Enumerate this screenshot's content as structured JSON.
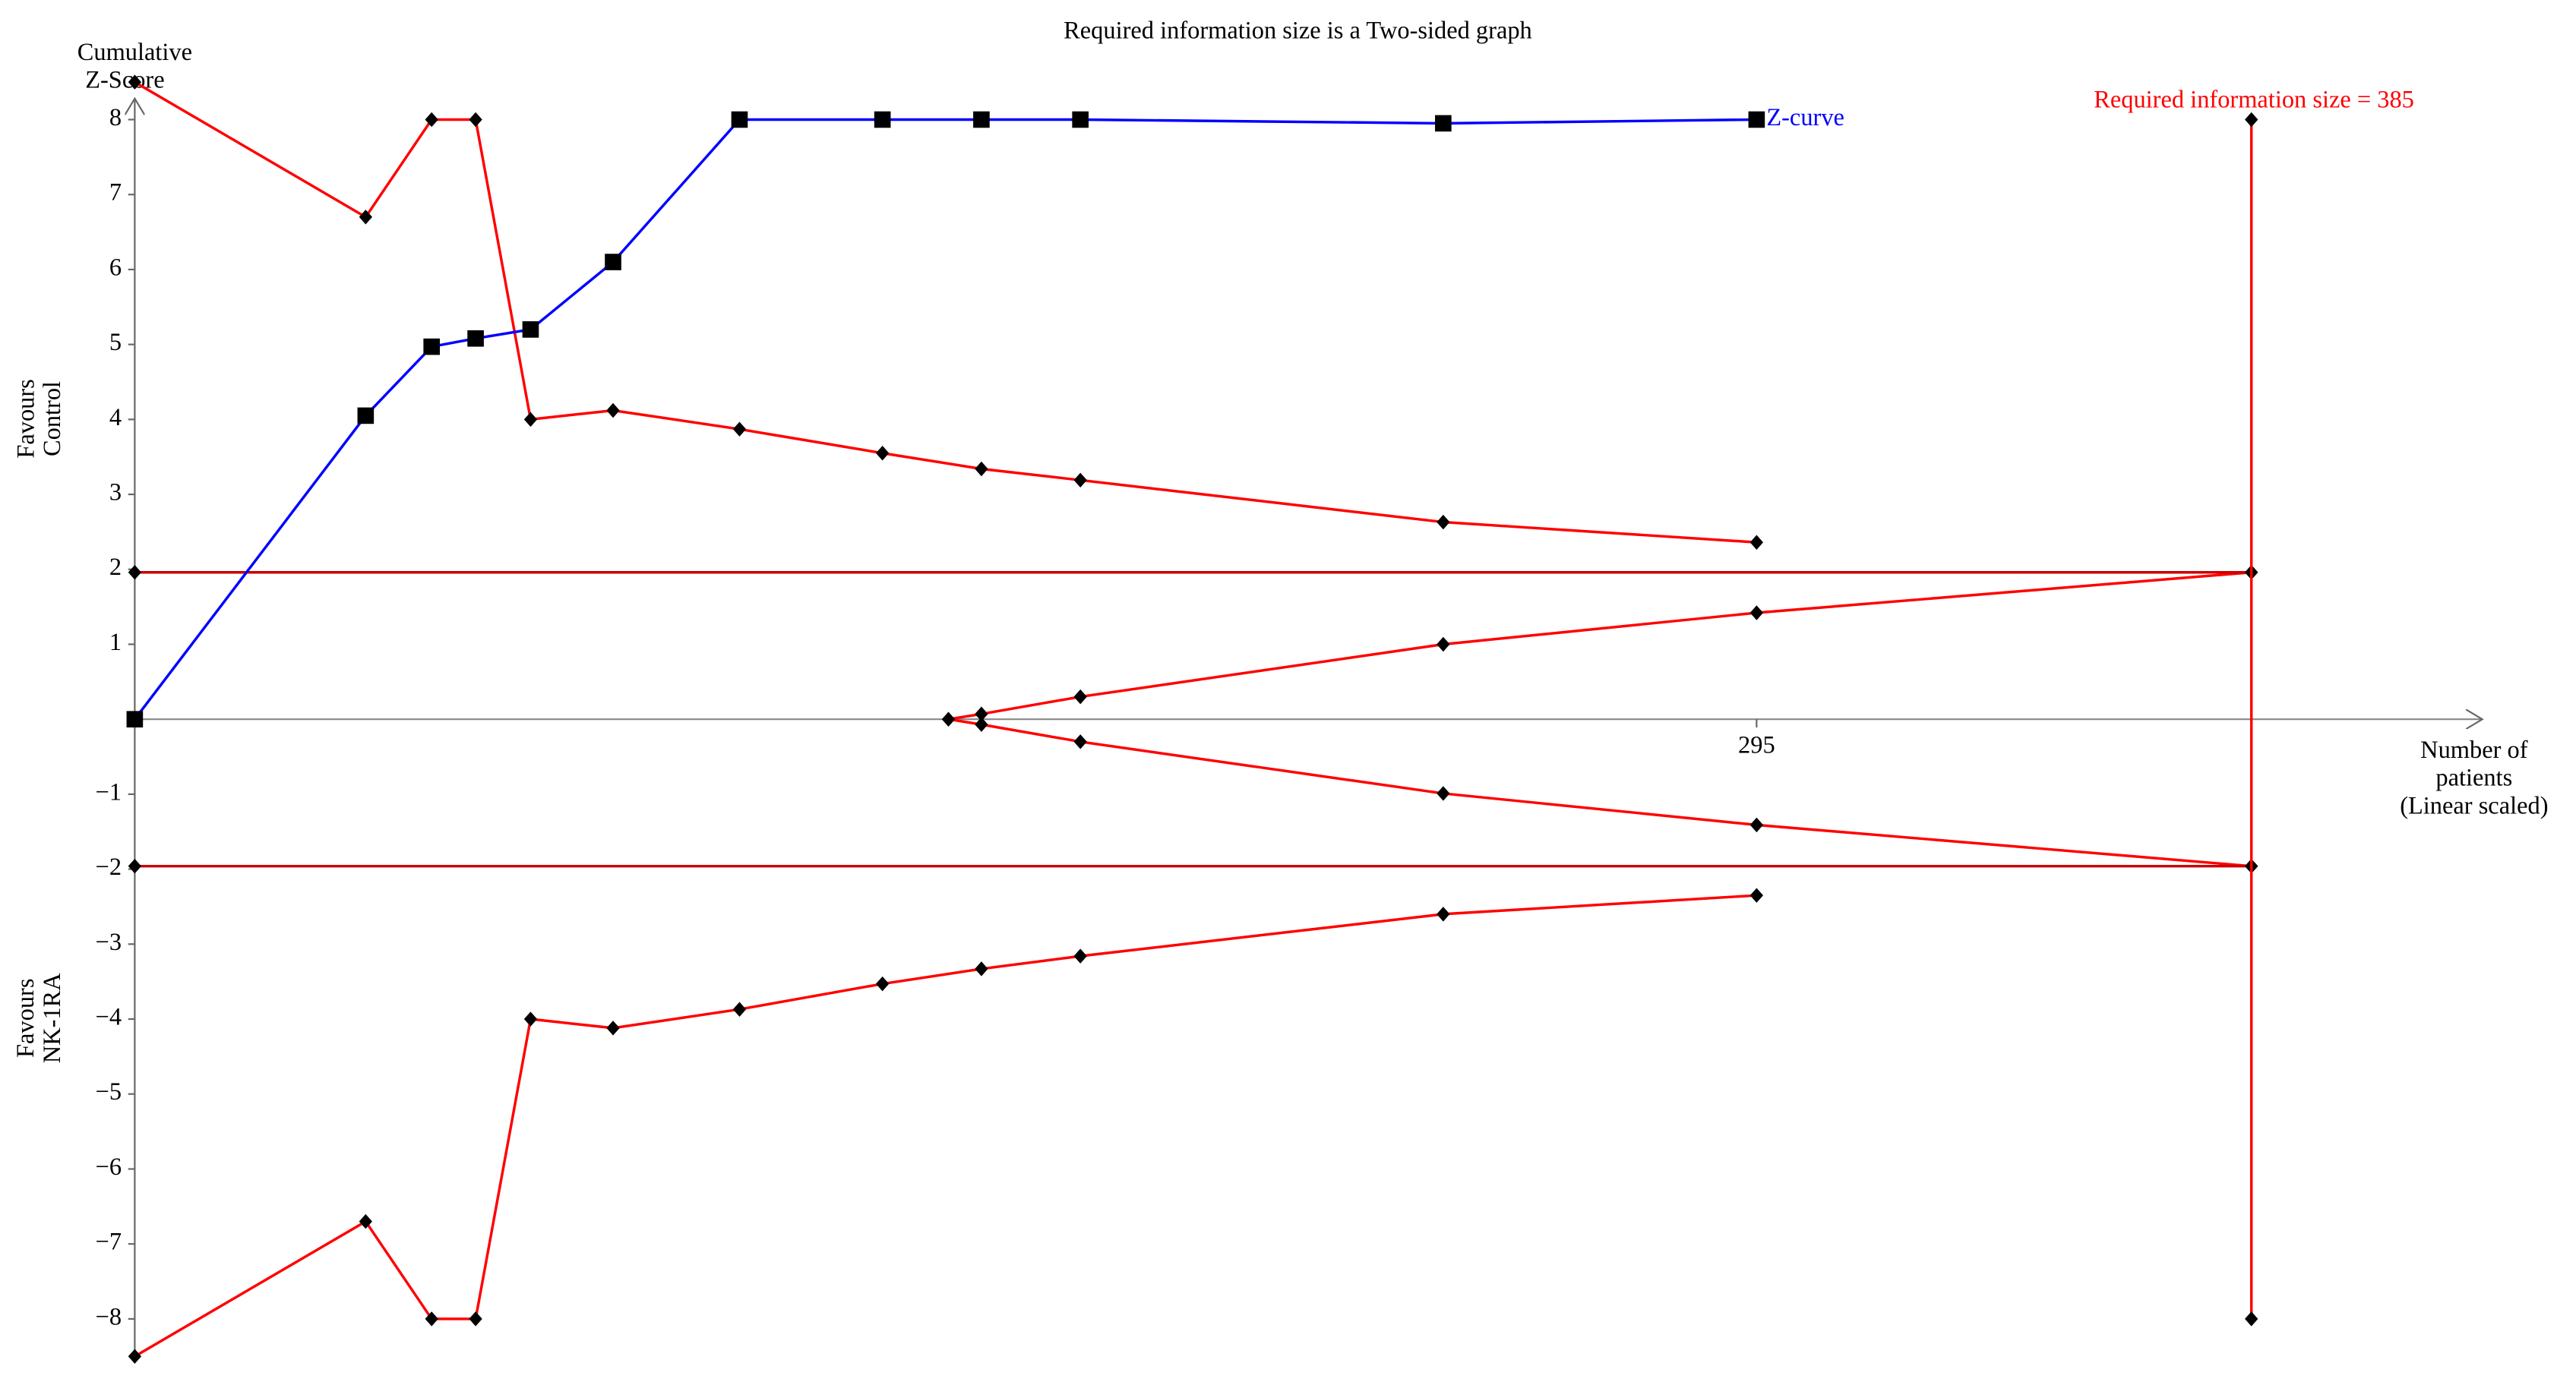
{
  "chart_data": {
    "type": "line",
    "title": "Required information size is a Two-sided graph",
    "y_label": [
      "Cumulative",
      "Z-Score"
    ],
    "favours_upper": [
      "Favours",
      "Control"
    ],
    "favours_lower": [
      "Favours",
      "NK-1RA"
    ],
    "x_label": [
      "Number of",
      "patients",
      "(Linear scaled)"
    ],
    "ris_annotation": "Required information size = 385",
    "xlim": [
      0,
      427
    ],
    "xticks": [
      295
    ],
    "ylim": [
      -8.5,
      8.5
    ],
    "yticks": [
      8,
      7,
      6,
      5,
      4,
      3,
      2,
      1,
      {
        "value": -1,
        "label": "−1"
      },
      {
        "value": -2,
        "label": "−2"
      },
      {
        "value": -3,
        "label": "−3"
      },
      {
        "value": -4,
        "label": "−4"
      },
      {
        "value": -5,
        "label": "−5"
      },
      {
        "value": -6,
        "label": "−6"
      },
      {
        "value": -7,
        "label": "−7"
      },
      {
        "value": -8,
        "label": "−8"
      }
    ],
    "series": [
      {
        "name": "Z-curve",
        "color": "#0000ff",
        "marker": "square",
        "x": [
          0,
          42,
          54,
          62,
          72,
          87,
          110,
          136,
          154,
          172,
          238,
          295
        ],
        "values": [
          0,
          4.05,
          4.97,
          5.08,
          5.2,
          6.1,
          8,
          8,
          8,
          8,
          7.95,
          8
        ]
      }
    ],
    "boundaries": [
      {
        "color": "#ff0000",
        "x": [
          0,
          42,
          54,
          62,
          72,
          87,
          110,
          136,
          154,
          172,
          238,
          295
        ],
        "values": [
          8.5,
          6.7,
          8,
          8,
          4.0,
          4.12,
          3.87,
          3.55,
          3.34,
          3.19,
          2.63,
          2.36
        ]
      },
      {
        "color": "#ff0000",
        "x": [
          0,
          42,
          54,
          62,
          72,
          87,
          110,
          136,
          154,
          172,
          238,
          295
        ],
        "values": [
          -8.5,
          -6.7,
          -8,
          -8,
          -4.0,
          -4.12,
          -3.87,
          -3.53,
          -3.33,
          -3.16,
          -2.6,
          -2.35
        ]
      },
      {
        "color": "#ff0000",
        "x": [
          148,
          154,
          172,
          238,
          295,
          385
        ],
        "values": [
          0,
          0.07,
          0.3,
          1.0,
          1.42,
          1.96
        ]
      },
      {
        "color": "#ff0000",
        "x": [
          148,
          154,
          172,
          238,
          295,
          385
        ],
        "values": [
          0,
          -0.07,
          -0.3,
          -0.99,
          -1.41,
          -1.96
        ]
      },
      {
        "color": "#cc0000",
        "x": [
          0,
          385
        ],
        "values": [
          1.96,
          1.96
        ]
      },
      {
        "color": "#cc0000",
        "x": [
          0,
          385
        ],
        "values": [
          -1.96,
          -1.96
        ]
      },
      {
        "color": "#ff0000",
        "x": [
          385,
          385
        ],
        "values": [
          8,
          -8
        ]
      }
    ]
  }
}
